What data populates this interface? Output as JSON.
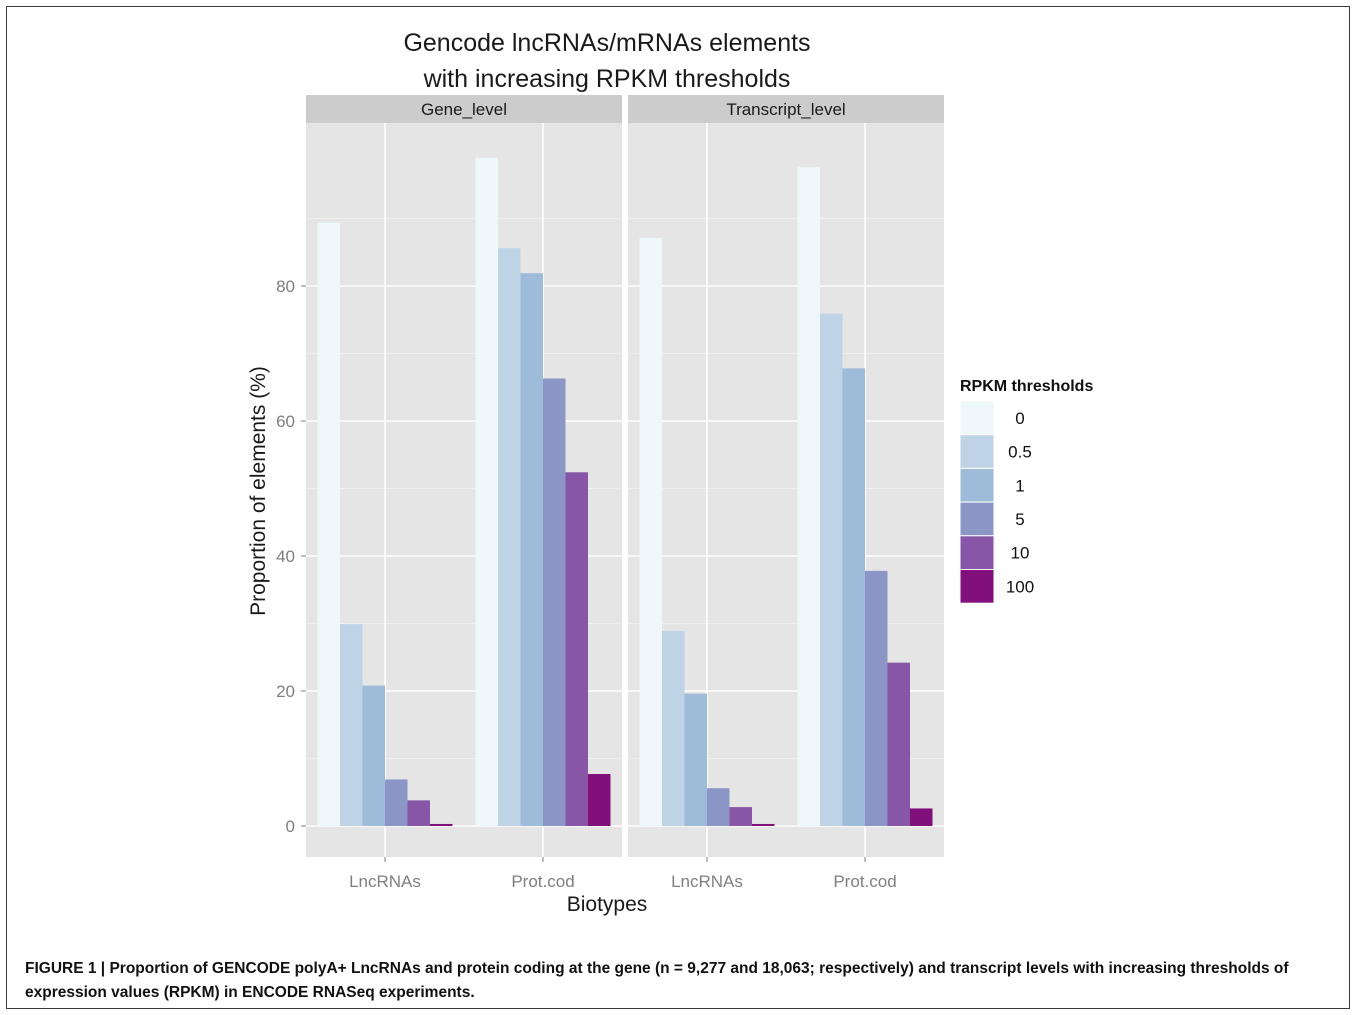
{
  "figure": {
    "caption_label": "FIGURE 1 |",
    "caption_text": "Proportion of GENCODE polyA+ LncRNAs and protein coding at the gene (n = 9,277 and 18,063; respectively) and transcript levels with increasing thresholds of expression values (RPKM) in ENCODE RNASeq experiments."
  },
  "chart_data": {
    "type": "bar",
    "title_lines": [
      "Gencode lncRNAs/mRNAs elements",
      "with increasing RPKM thresholds"
    ],
    "xlabel": "Biotypes",
    "ylabel": "Proportion of elements (%)",
    "ylim": [
      0,
      103
    ],
    "yticks": [
      0,
      20,
      40,
      60,
      80
    ],
    "grid": true,
    "legend_title": "RPKM thresholds",
    "legend_position": "right",
    "categories": [
      "LncRNAs",
      "Prot.cod"
    ],
    "series": [
      {
        "name": "0",
        "color": "#eef7f9"
      },
      {
        "name": "0.5",
        "color": "#bfd3e6"
      },
      {
        "name": "1",
        "color": "#9ebcda"
      },
      {
        "name": "5",
        "color": "#8c96c6"
      },
      {
        "name": "10",
        "color": "#8856a7"
      },
      {
        "name": "100",
        "color": "#810f7c"
      }
    ],
    "panels": [
      {
        "label": "Gene_level",
        "values": {
          "LncRNAs": [
            89.4,
            29.9,
            20.8,
            6.9,
            3.8,
            0.3
          ],
          "Prot.cod": [
            99.0,
            85.6,
            81.9,
            66.3,
            52.4,
            7.7
          ]
        }
      },
      {
        "label": "Transcript_level",
        "values": {
          "LncRNAs": [
            87.1,
            28.9,
            19.6,
            5.6,
            2.8,
            0.3
          ],
          "Prot.cod": [
            97.6,
            75.9,
            67.8,
            37.8,
            24.2,
            2.6
          ]
        }
      }
    ]
  }
}
